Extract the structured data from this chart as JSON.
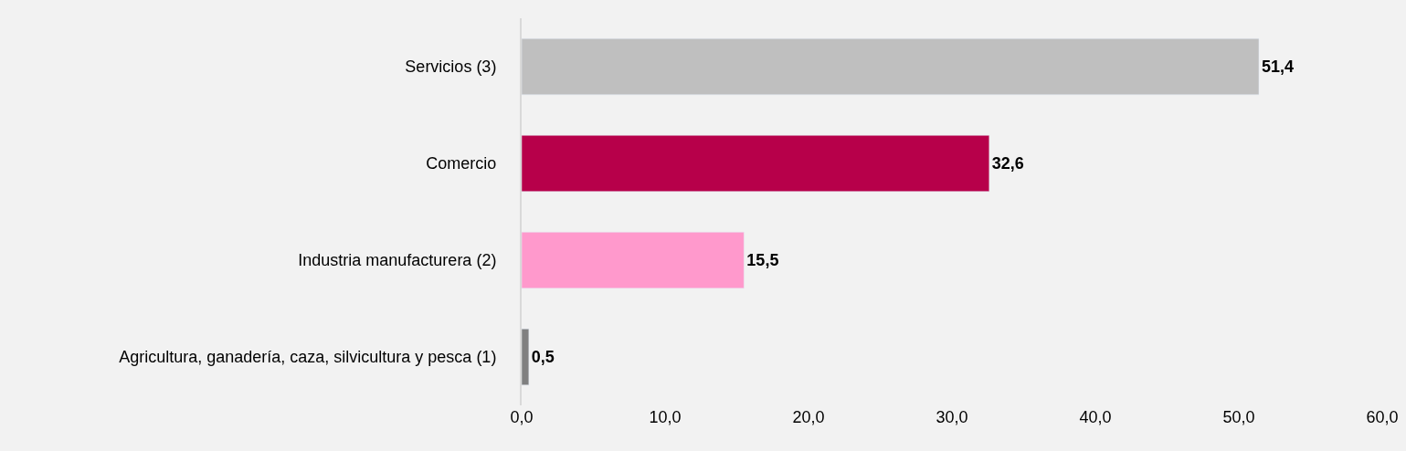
{
  "chart_data": {
    "type": "bar",
    "orientation": "horizontal",
    "categories": [
      "Servicios (3)",
      "Comercio",
      "Industria manufacturera (2)",
      "Agricultura, ganadería, caza, silvicultura y pesca (1)"
    ],
    "values": [
      51.4,
      32.6,
      15.5,
      0.5
    ],
    "colors": [
      "#bfbfbf",
      "#b7004a",
      "#ff99cc",
      "#808080"
    ],
    "value_labels": [
      "51,4",
      "32,6",
      "15,5",
      "0,5"
    ],
    "xlim": [
      0,
      60
    ],
    "xticks": [
      {
        "value": 0,
        "label": "0,0"
      },
      {
        "value": 10,
        "label": "10,0"
      },
      {
        "value": 20,
        "label": "20,0"
      },
      {
        "value": 30,
        "label": "30,0"
      },
      {
        "value": 40,
        "label": "40,0"
      },
      {
        "value": 50,
        "label": "50,0"
      },
      {
        "value": 60,
        "label": "60,0"
      }
    ],
    "grid": false,
    "legend": false
  }
}
